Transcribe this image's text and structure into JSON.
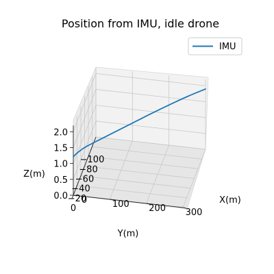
{
  "chart_data": {
    "type": "line",
    "title": "Position from IMU, idle drone",
    "xlabel": "X(m)",
    "ylabel": "Y(m)",
    "zlabel": "Z(m)",
    "xlim": [
      0,
      300
    ],
    "ylim": [
      -120,
      0
    ],
    "zlim": [
      0,
      2.2
    ],
    "xticks": [
      0,
      100,
      200,
      300
    ],
    "yticks": [
      -100,
      -80,
      -60,
      -40,
      -20,
      0
    ],
    "zticks": [
      0.0,
      0.5,
      1.0,
      1.5,
      2.0
    ],
    "xtick_labels": [
      "0",
      "100",
      "200",
      "300"
    ],
    "ytick_labels": [
      "−100",
      "−80",
      "−60",
      "−40",
      "−20",
      "0"
    ],
    "ztick_labels": [
      "0.0",
      "0.5",
      "1.0",
      "1.5",
      "2.0"
    ],
    "grid": true,
    "legend_position": "top-right",
    "series": [
      {
        "name": "IMU",
        "color": "#1f77b4",
        "x": [
          300,
          260,
          220,
          180,
          140,
          100,
          60,
          25,
          5,
          0
        ],
        "y": [
          -120,
          -105,
          -88,
          -70,
          -55,
          -40,
          -25,
          -12,
          -3,
          0
        ],
        "z": [
          1.9,
          1.85,
          1.8,
          1.75,
          1.65,
          1.55,
          1.45,
          1.35,
          1.25,
          1.2
        ]
      }
    ]
  }
}
